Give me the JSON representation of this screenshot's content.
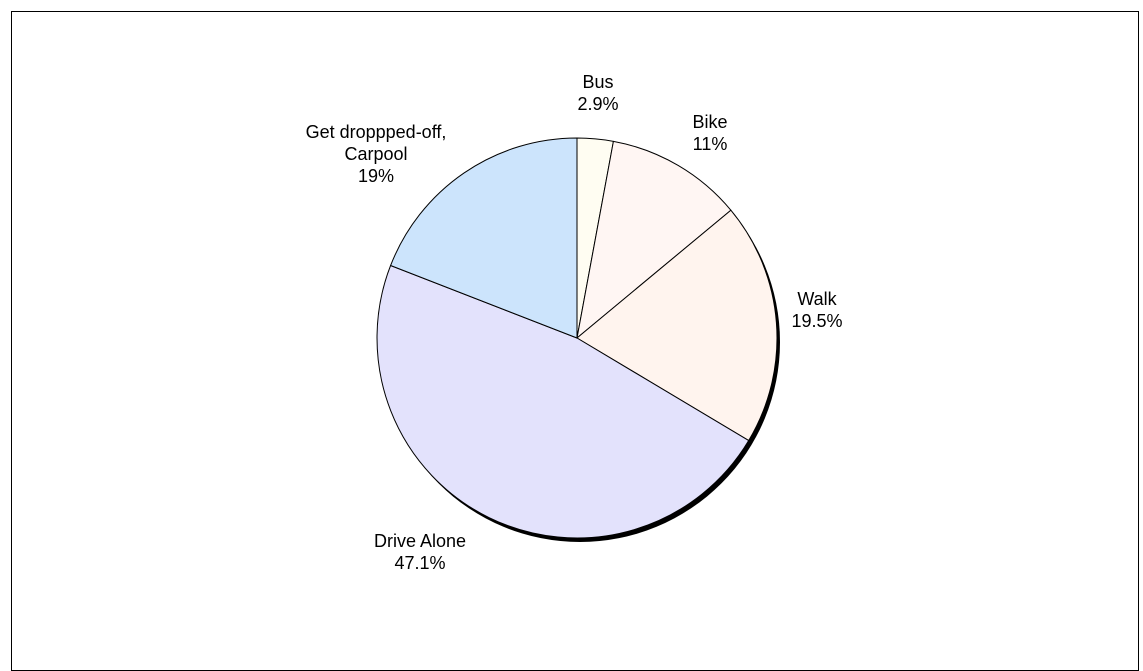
{
  "chart_data": {
    "type": "pie",
    "slices": [
      {
        "label": "Bus",
        "value": 2.9,
        "display": "2.9%",
        "color": "#FFFDF2"
      },
      {
        "label": "Bike",
        "value": 11,
        "display": "11%",
        "color": "#FFF6F3"
      },
      {
        "label": "Walk",
        "value": 19.5,
        "display": "19.5%",
        "color": "#FFF4EE"
      },
      {
        "label": "Drive Alone",
        "value": 47.1,
        "display": "47.1%",
        "color": "#E3E2FC"
      },
      {
        "label": "Get droppped-off, Carpool",
        "label_lines": [
          "Get droppped-off,",
          "Carpool"
        ],
        "value": 19,
        "display": "19%",
        "color": "#CCE4FC"
      }
    ],
    "start_angle": "12 o'clock",
    "direction": "clockwise",
    "legend": "none",
    "data_labels": "category name and percentage, outside each slice",
    "style": "3D-like drop shadow on the lower-right edge"
  }
}
